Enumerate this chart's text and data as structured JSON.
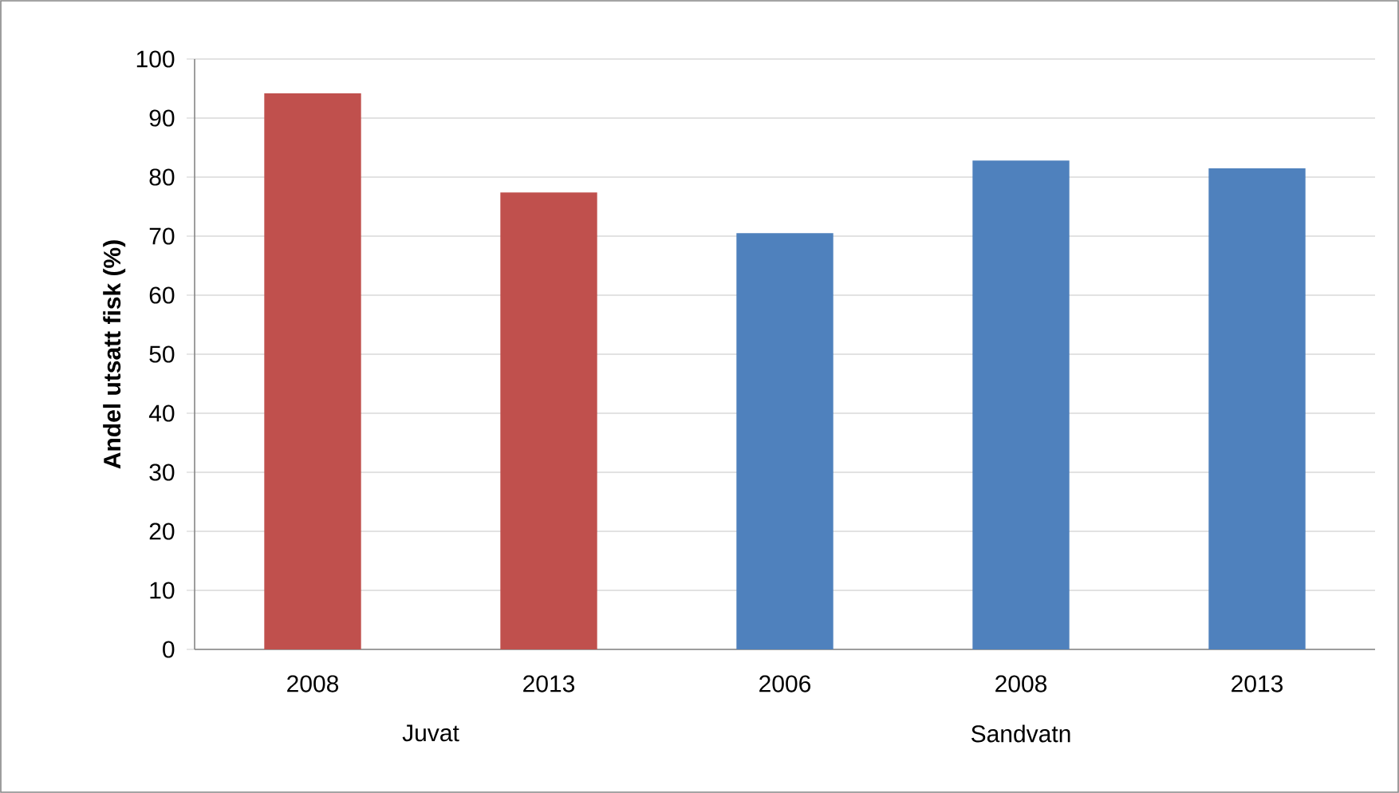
{
  "chart_data": {
    "type": "bar",
    "ylabel": "Andel utsatt fisk (%)",
    "categories": [
      "2008",
      "2013",
      "2006",
      "2008",
      "2013"
    ],
    "values": [
      94.2,
      77.4,
      70.5,
      82.8,
      81.5
    ],
    "colors": [
      "#c0504d",
      "#c0504d",
      "#4f81bd",
      "#4f81bd",
      "#4f81bd"
    ],
    "annotations": [
      "Juvat",
      "Sandvatn"
    ],
    "ylim": [
      0,
      100
    ],
    "yticks": [
      0,
      10,
      20,
      30,
      40,
      50,
      60,
      70,
      80,
      90,
      100
    ],
    "grid": "y"
  }
}
